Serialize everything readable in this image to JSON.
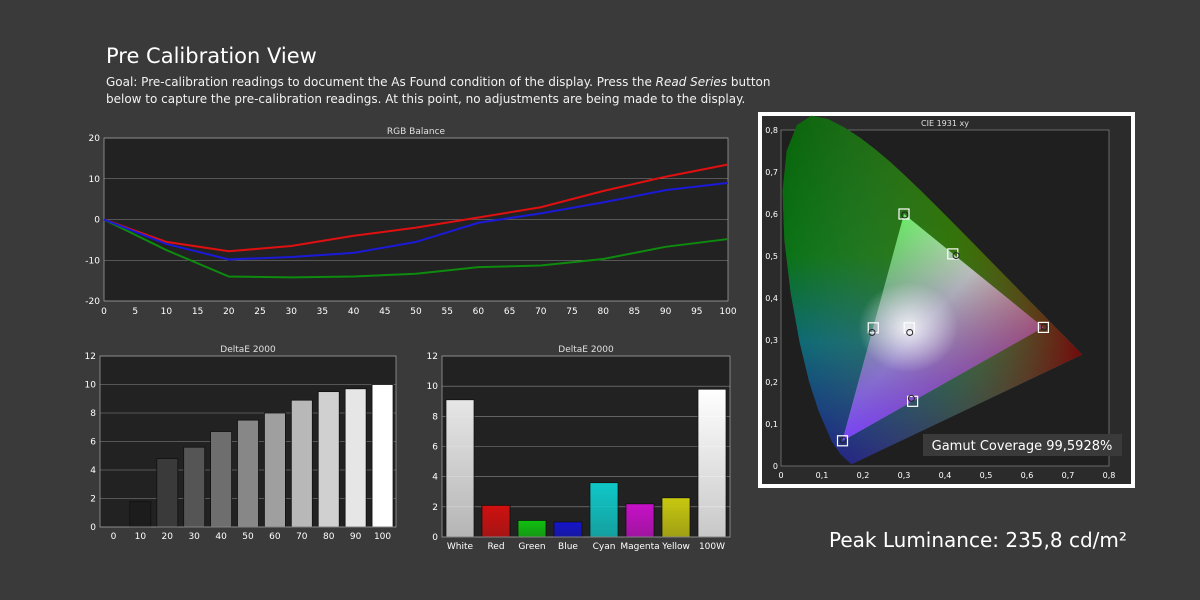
{
  "page": {
    "title": "Pre Calibration View",
    "goal_prefix": "Goal: Pre-calibration readings to document the As Found condition of the display. Press the ",
    "goal_italic": "Read Series",
    "goal_suffix": " button below to capture the pre-calibration readings. At this point, no adjustments are being made to the display.",
    "peak_luminance": "Peak Luminance: 235,8 cd/m²"
  },
  "colors": {
    "background": "#3a3a3a",
    "plot_bg": "#222222",
    "red": "#e01010",
    "green": "#0e8a0e",
    "blue": "#1a1ad8"
  },
  "chart_data": [
    {
      "type": "line",
      "title": "RGB Balance",
      "x": [
        0,
        10,
        20,
        30,
        40,
        50,
        60,
        70,
        80,
        90,
        100
      ],
      "x_ticks": [
        "0",
        "5",
        "10",
        "15",
        "20",
        "25",
        "30",
        "35",
        "40",
        "45",
        "50",
        "55",
        "60",
        "65",
        "70",
        "75",
        "80",
        "85",
        "90",
        "95",
        "100"
      ],
      "y_ticks": [
        "20",
        "10",
        "0",
        "-10",
        "-20"
      ],
      "xlim": [
        0,
        100
      ],
      "ylim": [
        -20,
        20
      ],
      "series": [
        {
          "color": "#e01010",
          "values": [
            0,
            -5.5,
            -7.8,
            -6.5,
            -4,
            -2,
            0.5,
            3,
            7,
            10.5,
            13.5
          ]
        },
        {
          "color": "#0e8a0e",
          "values": [
            0,
            -7.5,
            -14,
            -14.2,
            -14,
            -13.3,
            -11.7,
            -11.3,
            -9.7,
            -6.7,
            -4.8
          ]
        },
        {
          "color": "#1a1ad8",
          "values": [
            0,
            -6,
            -9.8,
            -9.2,
            -8.2,
            -5.5,
            -0.8,
            1.5,
            4.2,
            7.2,
            9
          ]
        }
      ]
    },
    {
      "type": "bar",
      "title": "DeltaE 2000",
      "categories": [
        "0",
        "10",
        "20",
        "30",
        "40",
        "50",
        "60",
        "70",
        "80",
        "90",
        "100"
      ],
      "values": [
        0,
        1.8,
        4.8,
        5.6,
        6.7,
        7.5,
        8,
        8.9,
        9.5,
        9.7,
        10
      ],
      "colors": [
        "#000000",
        "#1c1c1c",
        "#3a3a3a",
        "#555555",
        "#6e6e6e",
        "#878787",
        "#9f9f9f",
        "#b8b8b8",
        "#d0d0d0",
        "#e6e6e6",
        "#ffffff"
      ],
      "y_ticks": [
        "12",
        "10",
        "8",
        "6",
        "4",
        "2",
        "0"
      ],
      "ylim": [
        0,
        12
      ]
    },
    {
      "type": "bar",
      "title": "DeltaE 2000",
      "categories": [
        "White",
        "Red",
        "Green",
        "Blue",
        "Cyan",
        "Magenta",
        "Yellow",
        "100W"
      ],
      "values": [
        9.1,
        2.1,
        1.1,
        1.0,
        3.6,
        2.2,
        2.6,
        9.8
      ],
      "colors": [
        "#e6e6e6",
        "#d01010",
        "#10c010",
        "#1414cc",
        "#10c8c8",
        "#c810c8",
        "#c8c810",
        "#ffffff"
      ],
      "y_ticks": [
        "12",
        "10",
        "8",
        "6",
        "4",
        "2",
        "0"
      ],
      "ylim": [
        0,
        12
      ]
    },
    {
      "type": "scatter",
      "title": "CIE 1931 xy",
      "xlim": [
        0,
        0.8
      ],
      "ylim": [
        0,
        0.8
      ],
      "x_ticks": [
        "0",
        "0,1",
        "0,2",
        "0,3",
        "0,4",
        "0,5",
        "0,6",
        "0,7",
        "0,8"
      ],
      "y_ticks": [
        "0,8",
        "0,7",
        "0,6",
        "0,5",
        "0,4",
        "0,3",
        "0,2",
        "0,1",
        "0"
      ],
      "gamut_triangle": [
        [
          0.64,
          0.33
        ],
        [
          0.3,
          0.6
        ],
        [
          0.15,
          0.06
        ]
      ],
      "targets": [
        [
          0.64,
          0.33
        ],
        [
          0.3,
          0.6
        ],
        [
          0.15,
          0.06
        ],
        [
          0.3127,
          0.329
        ],
        [
          0.225,
          0.329
        ],
        [
          0.321,
          0.154
        ],
        [
          0.419,
          0.505
        ]
      ],
      "measured": [
        [
          0.642,
          0.331
        ],
        [
          0.302,
          0.598
        ],
        [
          0.151,
          0.062
        ],
        [
          0.314,
          0.318
        ],
        [
          0.222,
          0.318
        ],
        [
          0.318,
          0.161
        ],
        [
          0.427,
          0.501
        ]
      ],
      "gamut_coverage": "Gamut Coverage 99,5928%"
    }
  ]
}
